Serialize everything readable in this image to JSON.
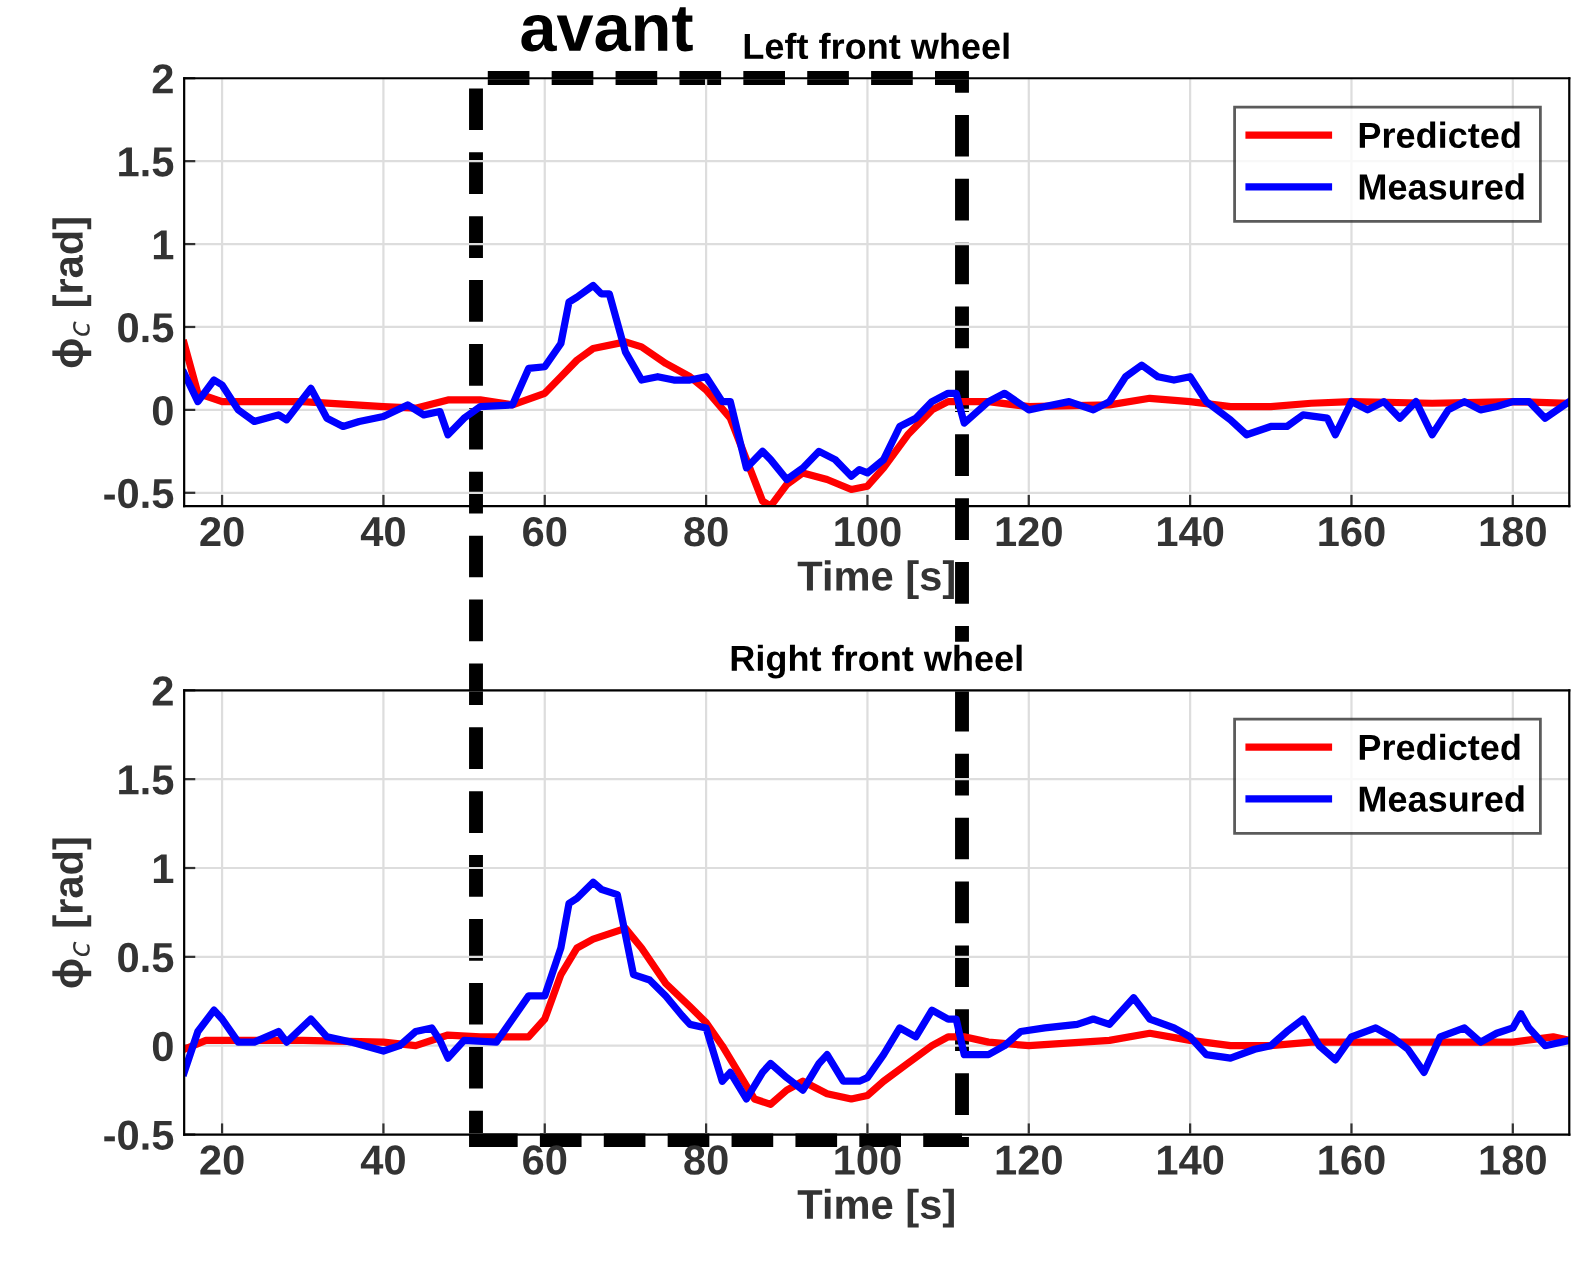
{
  "chart_data": [
    {
      "type": "line",
      "title": "Left front wheel",
      "xlabel": "Time [s]",
      "ylabel": "ϕ$_{c}$ [rad]",
      "annotations": [
        "avant"
      ],
      "xlim": [
        15.3,
        187
      ],
      "ylim": [
        -0.58,
        2
      ],
      "xticks": [
        20,
        40,
        60,
        80,
        100,
        120,
        140,
        160,
        180
      ],
      "yticks": [
        -0.5,
        0,
        0.5,
        1,
        1.5,
        2
      ],
      "grid": true,
      "legend": "top right",
      "line_style": "solid",
      "series": [
        {
          "name": "Predicted",
          "color": "#ff0000",
          "x": [
            15.3,
            17,
            20,
            30,
            40,
            44,
            48,
            52,
            56,
            60,
            62,
            64,
            66,
            70,
            72,
            75,
            78,
            80,
            83,
            85,
            87,
            88,
            90,
            92,
            95,
            98,
            100,
            102,
            105,
            108,
            110,
            115,
            120,
            130,
            135,
            140,
            145,
            150,
            155,
            160,
            170,
            180,
            187
          ],
          "values": [
            0.4,
            0.1,
            0.05,
            0.05,
            0.02,
            0.01,
            0.06,
            0.06,
            0.03,
            0.1,
            0.2,
            0.3,
            0.37,
            0.41,
            0.38,
            0.28,
            0.2,
            0.12,
            -0.05,
            -0.3,
            -0.55,
            -0.58,
            -0.45,
            -0.38,
            -0.42,
            -0.48,
            -0.46,
            -0.35,
            -0.15,
            0.0,
            0.05,
            0.05,
            0.02,
            0.03,
            0.07,
            0.05,
            0.02,
            0.02,
            0.04,
            0.05,
            0.04,
            0.05,
            0.04
          ]
        },
        {
          "name": "Measured",
          "color": "#0000ff",
          "x": [
            15.3,
            17,
            19,
            20,
            22,
            24,
            27,
            28,
            31,
            33,
            35,
            37,
            40,
            43,
            45,
            47,
            48,
            50,
            52,
            56,
            58,
            60,
            62,
            63,
            64,
            66,
            67,
            68,
            70,
            72,
            74,
            76,
            78,
            80,
            82,
            83,
            85,
            87,
            88,
            90,
            92,
            94,
            96,
            98,
            99,
            100,
            102,
            104,
            106,
            108,
            110,
            111,
            112,
            115,
            117,
            120,
            122,
            125,
            128,
            130,
            132,
            134,
            136,
            138,
            140,
            142,
            145,
            147,
            150,
            152,
            154,
            157,
            158,
            160,
            162,
            164,
            166,
            168,
            170,
            172,
            174,
            176,
            178,
            180,
            182,
            184,
            187
          ],
          "values": [
            0.22,
            0.05,
            0.18,
            0.15,
            0.0,
            -0.07,
            -0.03,
            -0.06,
            0.13,
            -0.05,
            -0.1,
            -0.07,
            -0.04,
            0.03,
            -0.03,
            -0.01,
            -0.15,
            -0.05,
            0.02,
            0.03,
            0.25,
            0.26,
            0.4,
            0.65,
            0.68,
            0.75,
            0.7,
            0.7,
            0.35,
            0.18,
            0.2,
            0.18,
            0.18,
            0.2,
            0.05,
            0.05,
            -0.35,
            -0.25,
            -0.3,
            -0.42,
            -0.35,
            -0.25,
            -0.3,
            -0.4,
            -0.36,
            -0.38,
            -0.3,
            -0.1,
            -0.05,
            0.05,
            0.1,
            0.1,
            -0.08,
            0.05,
            0.1,
            0.0,
            0.02,
            0.05,
            0.0,
            0.05,
            0.2,
            0.27,
            0.2,
            0.18,
            0.2,
            0.05,
            -0.06,
            -0.15,
            -0.1,
            -0.1,
            -0.03,
            -0.05,
            -0.15,
            0.05,
            0.0,
            0.05,
            -0.05,
            0.05,
            -0.15,
            0.0,
            0.05,
            0.0,
            0.02,
            0.05,
            0.05,
            -0.05,
            0.05
          ]
        }
      ]
    },
    {
      "type": "line",
      "title": "Right front wheel",
      "xlabel": "Time [s]",
      "ylabel": "ϕ$_{c}$ [rad]",
      "xlim": [
        15.3,
        187
      ],
      "ylim": [
        -0.5,
        2
      ],
      "xticks": [
        20,
        40,
        60,
        80,
        100,
        120,
        140,
        160,
        180
      ],
      "yticks": [
        -0.5,
        0,
        0.5,
        1,
        1.5,
        2
      ],
      "grid": true,
      "legend": "top right",
      "line_style": "solid",
      "series": [
        {
          "name": "Predicted",
          "color": "#ff0000",
          "x": [
            15.3,
            18,
            25,
            30,
            40,
            44,
            48,
            52,
            58,
            60,
            62,
            64,
            66,
            70,
            72,
            75,
            78,
            80,
            82,
            84,
            86,
            88,
            90,
            92,
            95,
            98,
            100,
            102,
            105,
            108,
            110,
            112,
            115,
            120,
            130,
            135,
            140,
            145,
            150,
            155,
            160,
            170,
            180,
            185,
            187
          ],
          "values": [
            -0.02,
            0.03,
            0.03,
            0.03,
            0.02,
            0.0,
            0.06,
            0.05,
            0.05,
            0.15,
            0.4,
            0.55,
            0.6,
            0.66,
            0.55,
            0.35,
            0.22,
            0.13,
            0.0,
            -0.15,
            -0.3,
            -0.33,
            -0.25,
            -0.2,
            -0.27,
            -0.3,
            -0.28,
            -0.2,
            -0.1,
            0.0,
            0.05,
            0.05,
            0.02,
            0.0,
            0.03,
            0.07,
            0.03,
            0.0,
            0.0,
            0.02,
            0.02,
            0.02,
            0.02,
            0.05,
            0.03
          ]
        },
        {
          "name": "Measured",
          "color": "#0000ff",
          "x": [
            15.3,
            17,
            19,
            20,
            22,
            24,
            27,
            28,
            31,
            33,
            36,
            40,
            42,
            44,
            46,
            47,
            48,
            50,
            54,
            58,
            60,
            62,
            63,
            64,
            66,
            67,
            69,
            71,
            73,
            75,
            77,
            78,
            80,
            82,
            83,
            85,
            87,
            88,
            90,
            92,
            94,
            95,
            97,
            99,
            100,
            102,
            104,
            106,
            108,
            110,
            111,
            112,
            115,
            117,
            119,
            122,
            126,
            128,
            130,
            133,
            135,
            138,
            140,
            142,
            145,
            148,
            150,
            152,
            154,
            156,
            158,
            160,
            163,
            165,
            167,
            169,
            171,
            174,
            176,
            178,
            180,
            181,
            182,
            184,
            187
          ],
          "values": [
            -0.15,
            0.08,
            0.2,
            0.15,
            0.02,
            0.02,
            0.08,
            0.02,
            0.15,
            0.05,
            0.02,
            -0.03,
            0.0,
            0.08,
            0.1,
            0.03,
            -0.07,
            0.03,
            0.02,
            0.28,
            0.28,
            0.55,
            0.8,
            0.83,
            0.92,
            0.88,
            0.85,
            0.4,
            0.37,
            0.28,
            0.17,
            0.12,
            0.1,
            -0.2,
            -0.15,
            -0.3,
            -0.15,
            -0.1,
            -0.18,
            -0.25,
            -0.1,
            -0.05,
            -0.2,
            -0.2,
            -0.18,
            -0.05,
            0.1,
            0.05,
            0.2,
            0.15,
            0.15,
            -0.05,
            -0.05,
            0.0,
            0.08,
            0.1,
            0.12,
            0.15,
            0.12,
            0.27,
            0.15,
            0.1,
            0.05,
            -0.05,
            -0.07,
            -0.02,
            0.0,
            0.08,
            0.15,
            0.0,
            -0.08,
            0.05,
            0.1,
            0.05,
            -0.02,
            -0.15,
            0.05,
            0.1,
            0.02,
            0.07,
            0.1,
            0.18,
            0.1,
            0.0,
            0.03
          ]
        }
      ]
    }
  ]
}
